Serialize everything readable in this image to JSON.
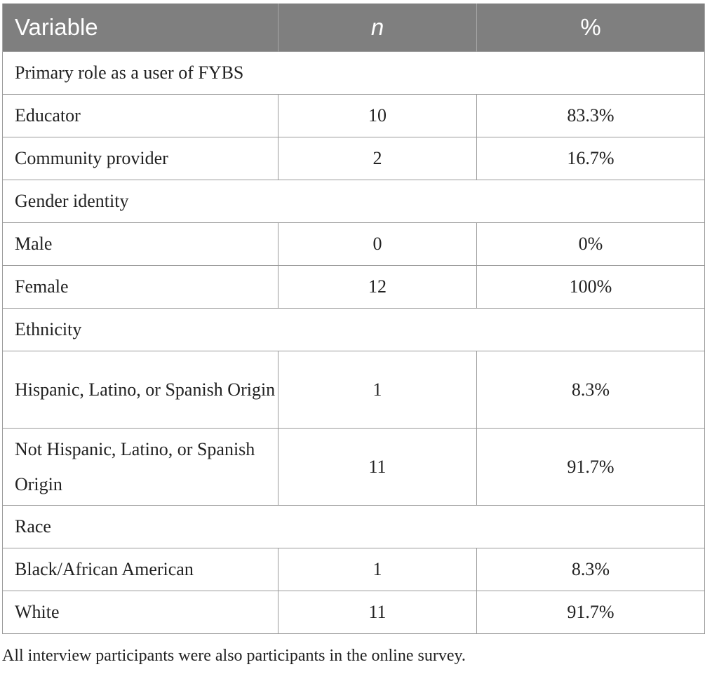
{
  "table": {
    "headers": [
      "Variable",
      "n",
      "%"
    ],
    "rows": [
      {
        "type": "section",
        "label": "Primary role as a user of FYBS"
      },
      {
        "type": "data",
        "label": "Educator",
        "n": "10",
        "pct": "83.3%"
      },
      {
        "type": "data",
        "label": "Community provider",
        "n": "2",
        "pct": "16.7%"
      },
      {
        "type": "section",
        "label": "Gender identity"
      },
      {
        "type": "data",
        "label": "Male",
        "n": "0",
        "pct": "0%"
      },
      {
        "type": "data",
        "label": "Female",
        "n": "12",
        "pct": "100%"
      },
      {
        "type": "section",
        "label": "Ethnicity"
      },
      {
        "type": "data",
        "label": "Hispanic, Latino, or Spanish Origin",
        "n": "1",
        "pct": "8.3%"
      },
      {
        "type": "data",
        "label": "Not Hispanic, Latino, or Spanish Origin",
        "n": "11",
        "pct": "91.7%"
      },
      {
        "type": "section",
        "label": "Race"
      },
      {
        "type": "data",
        "label": "Black/African American",
        "n": "1",
        "pct": "8.3%"
      },
      {
        "type": "data",
        "label": "White",
        "n": "11",
        "pct": "91.7%"
      }
    ]
  },
  "note": "All interview participants were also participants in the online survey."
}
